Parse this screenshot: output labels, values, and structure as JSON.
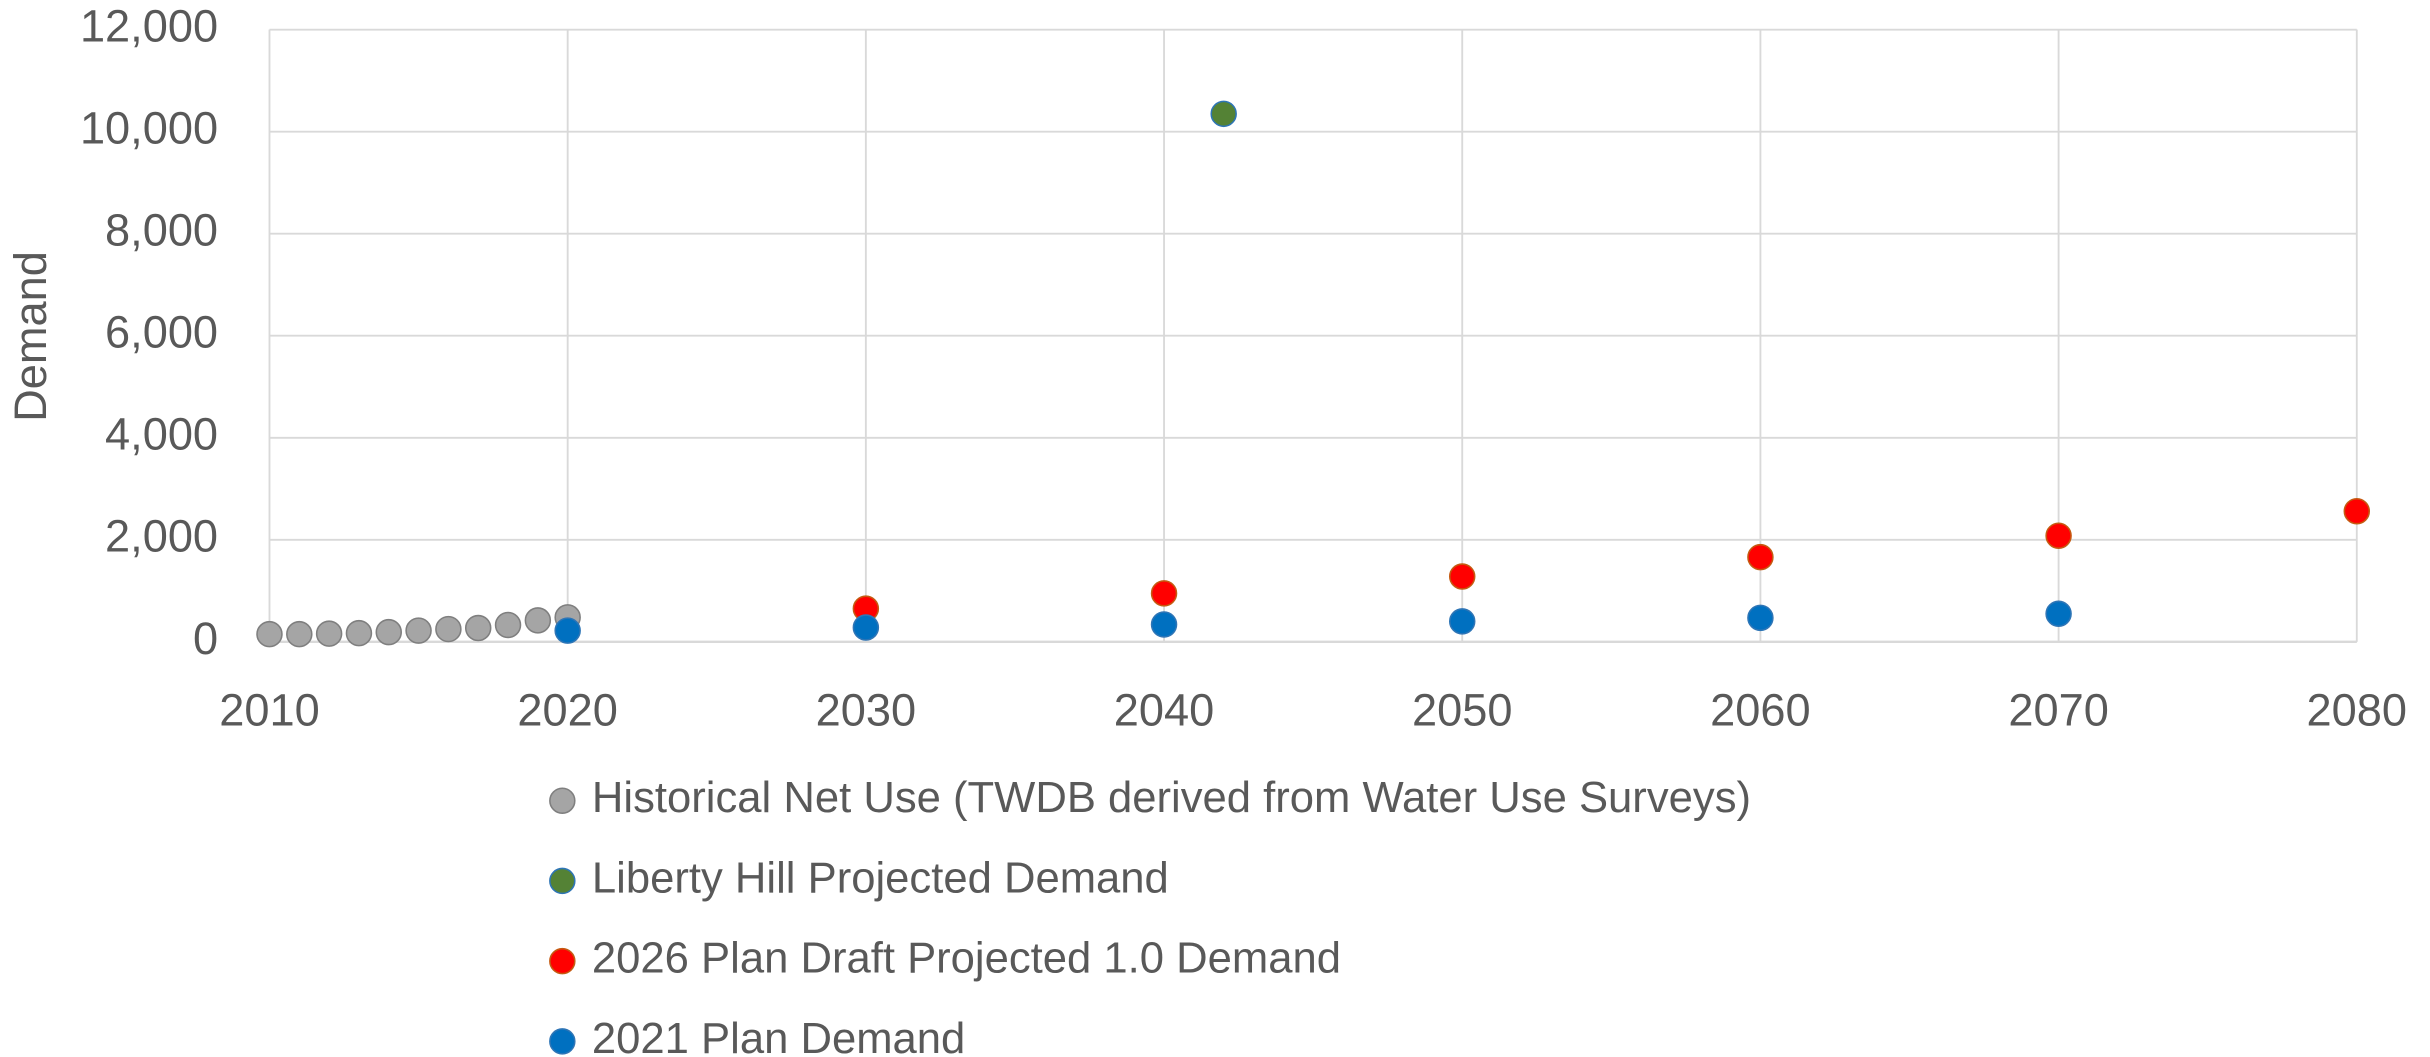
{
  "chart_data": {
    "type": "scatter",
    "ylabel": "Demand",
    "xlim": [
      2010,
      2080
    ],
    "xticks": [
      2010,
      2020,
      2030,
      2040,
      2050,
      2060,
      2070,
      2080
    ],
    "ylim": [
      0,
      12000
    ],
    "yticks": [
      0,
      {
        "value": 2000,
        "label": "2,000"
      },
      {
        "value": 4000,
        "label": "4,000"
      },
      {
        "value": 6000,
        "label": "6,000"
      },
      {
        "value": 8000,
        "label": "8,000"
      },
      {
        "value": 10000,
        "label": "10,000"
      },
      {
        "value": 12000,
        "label": "12,000"
      }
    ],
    "grid": true,
    "legend": "bottom",
    "series": [
      {
        "name": "Historical Net Use (TWDB derived from Water Use Surveys)",
        "color": "#a5a5a5",
        "edge": "#7f7f7f",
        "x": [
          2010,
          2011,
          2012,
          2013,
          2014,
          2015,
          2016,
          2017,
          2018,
          2019,
          2020
        ],
        "values": [
          150,
          150,
          160,
          170,
          190,
          220,
          250,
          270,
          330,
          420,
          480
        ]
      },
      {
        "name": "Liberty Hill Projected Demand",
        "color": "#548235",
        "edge": "#2e75b6",
        "x": [
          2042
        ],
        "values": [
          10350
        ]
      },
      {
        "name": "2026 Plan Draft Projected 1.0 Demand",
        "color": "#ff0000",
        "edge": "#c55a11",
        "x": [
          2030,
          2040,
          2050,
          2060,
          2070,
          2080
        ],
        "values": [
          650,
          950,
          1280,
          1660,
          2080,
          2560
        ]
      },
      {
        "name": "2021 Plan Demand",
        "color": "#0070c0",
        "edge": "#2e75b6",
        "x": [
          2020,
          2030,
          2040,
          2050,
          2060,
          2070
        ],
        "values": [
          220,
          280,
          340,
          400,
          470,
          550
        ]
      }
    ]
  }
}
